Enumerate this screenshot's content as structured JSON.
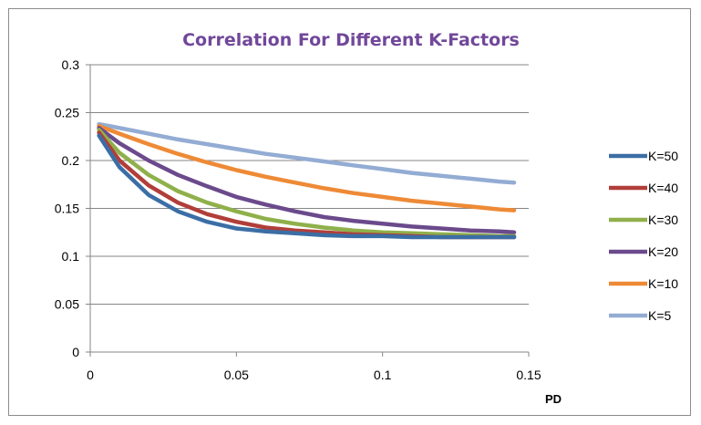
{
  "chart_data": {
    "type": "line",
    "title": "Correlation For Different K-Factors",
    "xlabel": "PD",
    "ylabel": "",
    "xlim": [
      0,
      0.15
    ],
    "ylim": [
      0,
      0.3
    ],
    "x_ticks": [
      "0",
      "0.05",
      "0.1",
      "0.15"
    ],
    "y_ticks": [
      "0",
      "0.05",
      "0.1",
      "0.15",
      "0.2",
      "0.25",
      "0.3"
    ],
    "grid": "horizontal",
    "legend_position": "right",
    "x": [
      0.003,
      0.01,
      0.02,
      0.03,
      0.04,
      0.05,
      0.06,
      0.07,
      0.08,
      0.09,
      0.1,
      0.11,
      0.12,
      0.13,
      0.14,
      0.145
    ],
    "series": [
      {
        "name": "K=50",
        "color": "#3b6ea5",
        "values": [
          0.226,
          0.193,
          0.164,
          0.147,
          0.136,
          0.129,
          0.126,
          0.124,
          0.122,
          0.121,
          0.121,
          0.12,
          0.12,
          0.12,
          0.12,
          0.12
        ]
      },
      {
        "name": "K=40",
        "color": "#b13e39",
        "values": [
          0.229,
          0.2,
          0.174,
          0.156,
          0.144,
          0.136,
          0.13,
          0.127,
          0.125,
          0.123,
          0.122,
          0.121,
          0.12,
          0.12,
          0.12,
          0.12
        ]
      },
      {
        "name": "K=30",
        "color": "#8fb04a",
        "values": [
          0.232,
          0.208,
          0.185,
          0.168,
          0.156,
          0.147,
          0.139,
          0.134,
          0.13,
          0.127,
          0.125,
          0.124,
          0.123,
          0.122,
          0.121,
          0.121
        ]
      },
      {
        "name": "K=20",
        "color": "#6b4a8c",
        "values": [
          0.234,
          0.218,
          0.2,
          0.185,
          0.173,
          0.162,
          0.154,
          0.147,
          0.141,
          0.137,
          0.134,
          0.131,
          0.129,
          0.127,
          0.126,
          0.125
        ]
      },
      {
        "name": "K=10",
        "color": "#ee8a36",
        "values": [
          0.236,
          0.228,
          0.217,
          0.207,
          0.198,
          0.19,
          0.183,
          0.177,
          0.171,
          0.166,
          0.162,
          0.158,
          0.155,
          0.152,
          0.149,
          0.148
        ]
      },
      {
        "name": "K=5",
        "color": "#93acd3",
        "values": [
          0.238,
          0.234,
          0.228,
          0.222,
          0.217,
          0.212,
          0.207,
          0.203,
          0.199,
          0.195,
          0.191,
          0.187,
          0.184,
          0.181,
          0.178,
          0.177
        ]
      }
    ]
  }
}
